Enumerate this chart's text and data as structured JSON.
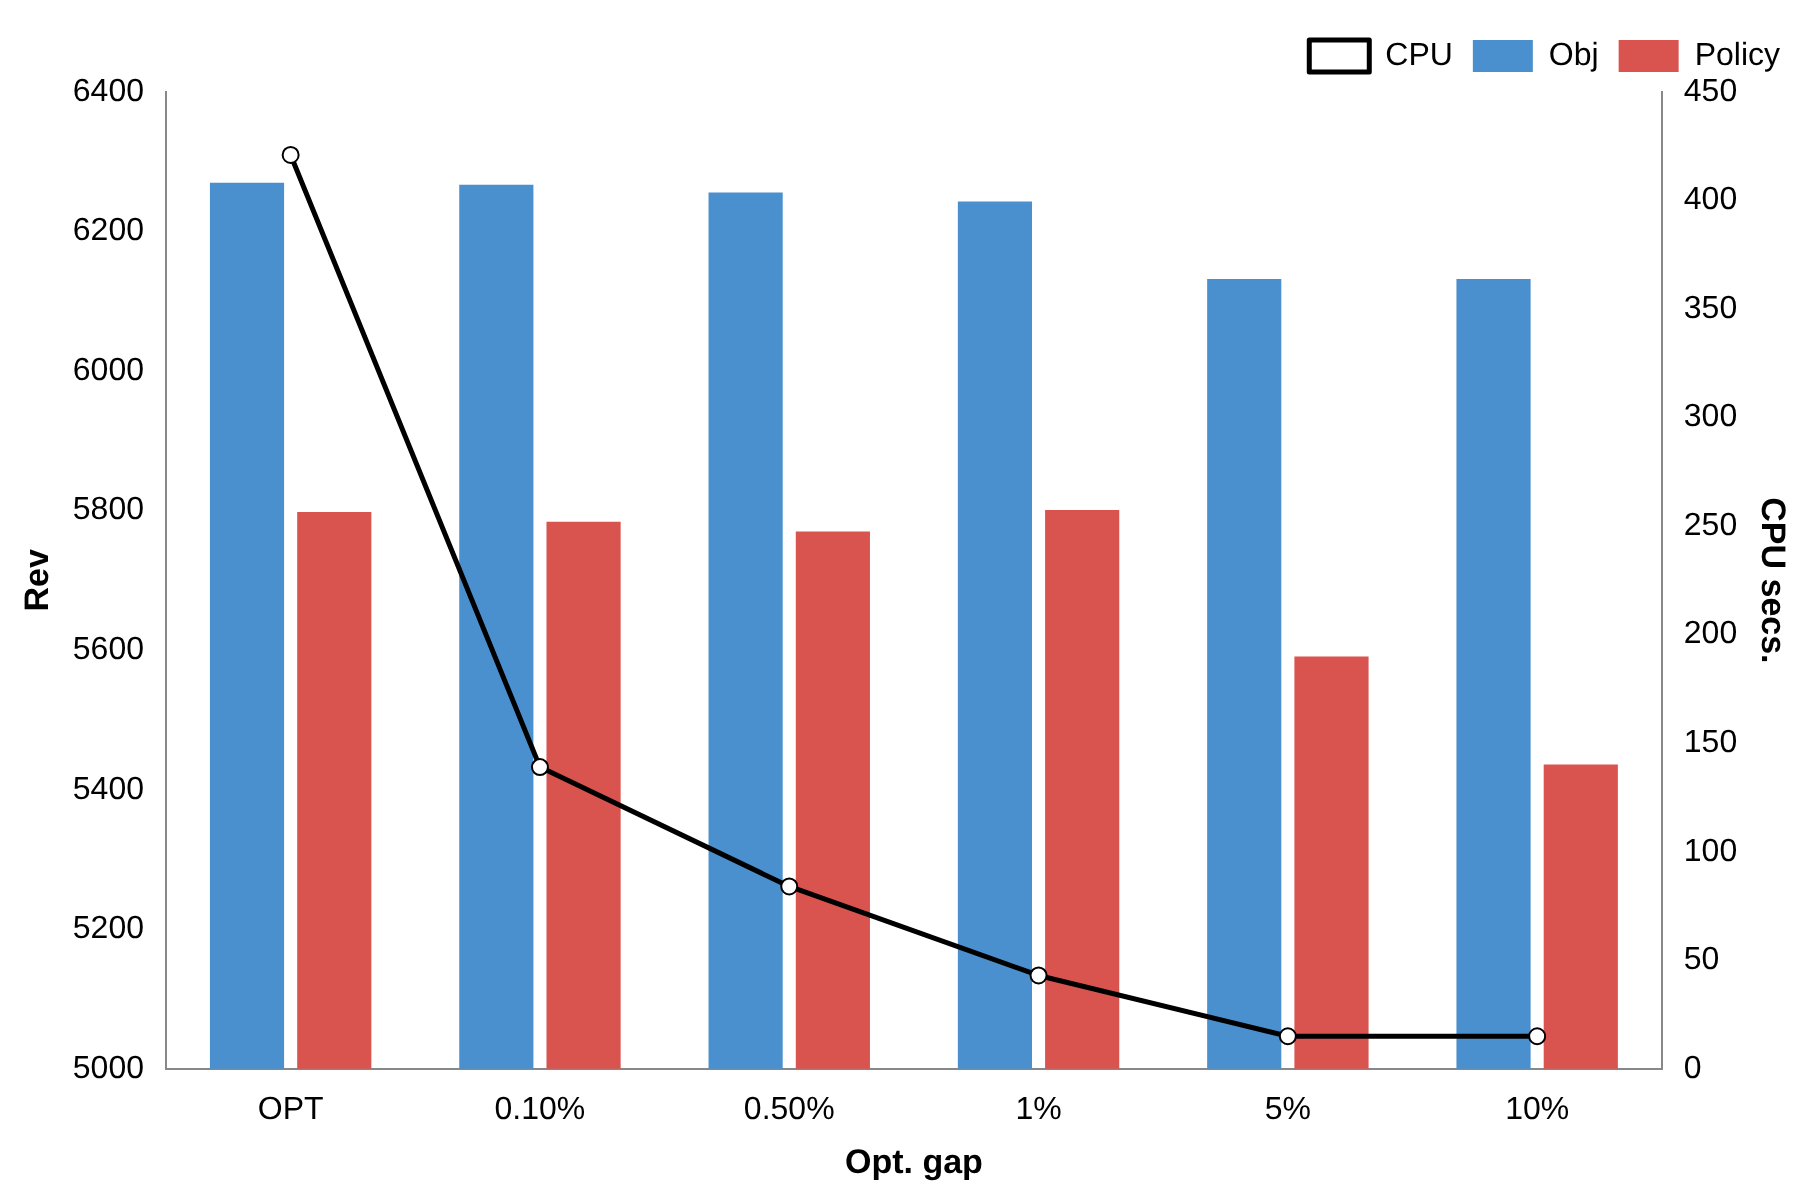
{
  "chart_data": {
    "type": "bar",
    "xlabel": "Opt. gap",
    "ylabel": "Rev",
    "y2label": "CPU secs.",
    "categories": [
      "OPT",
      "0.10%",
      "0.50%",
      "1%",
      "5%",
      "10%"
    ],
    "series": [
      {
        "name": "Obj",
        "color": "#4a90cf",
        "values": [
          6270,
          6267,
          6256,
          6243,
          6132,
          6132
        ]
      },
      {
        "name": "Policy",
        "color": "#d9534f",
        "values": [
          5798,
          5784,
          5770,
          5801,
          5591,
          5436
        ]
      },
      {
        "name": "CPU",
        "type": "line",
        "axis": "y2",
        "color": "#000000",
        "marker": "circle",
        "values": [
          421,
          139,
          84,
          43,
          15,
          15
        ]
      }
    ],
    "ylim": [
      5000,
      6400
    ],
    "yticks": [
      5000,
      5200,
      5400,
      5600,
      5800,
      6000,
      6200,
      6400
    ],
    "y2lim": [
      0,
      450
    ],
    "y2ticks": [
      0,
      50,
      100,
      150,
      200,
      250,
      300,
      350,
      400,
      450
    ],
    "grid": false,
    "legend": "top right"
  }
}
